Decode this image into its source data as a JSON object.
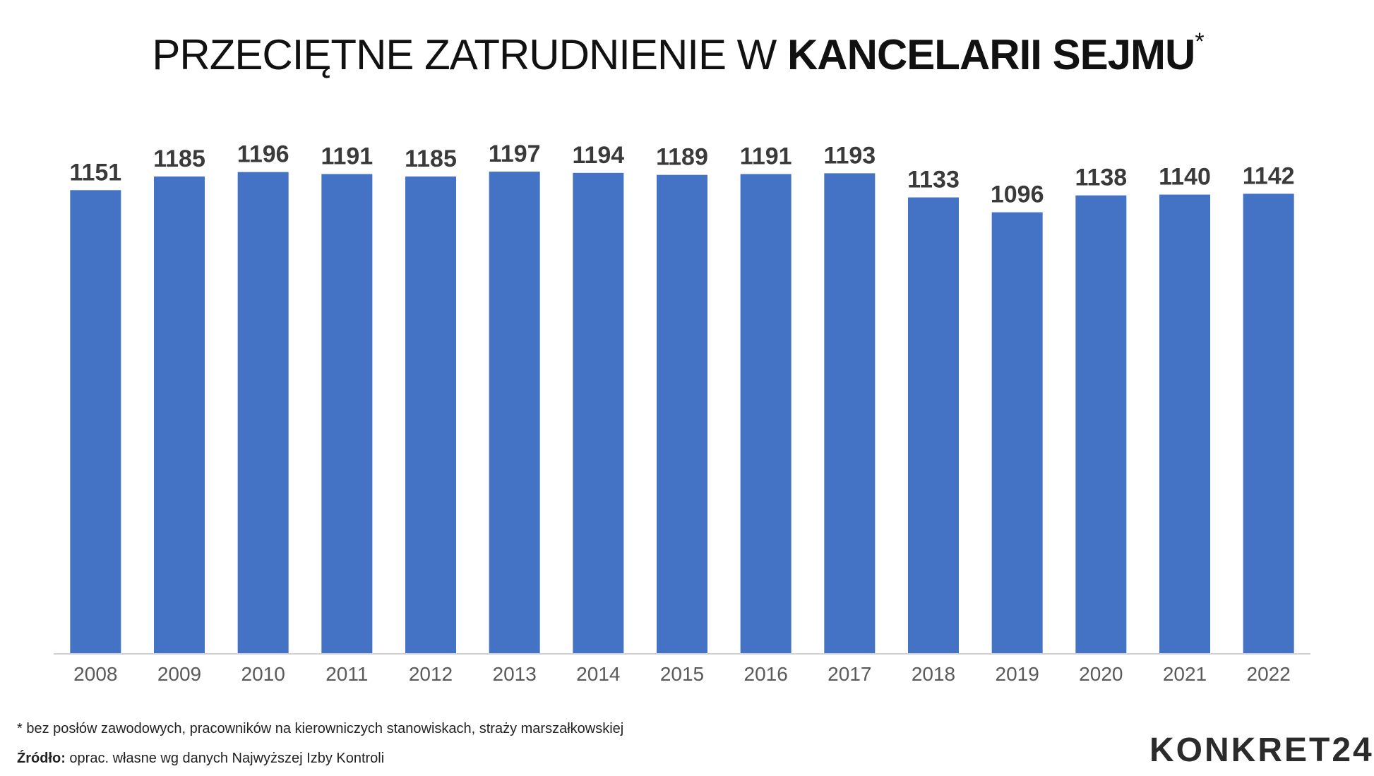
{
  "title": {
    "light": "PRZECIĘTNE ZATRUDNIENIE W ",
    "bold": "KANCELARII SEJMU",
    "mark": "*"
  },
  "chart_data": {
    "type": "bar",
    "categories": [
      "2008",
      "2009",
      "2010",
      "2011",
      "2012",
      "2013",
      "2014",
      "2015",
      "2016",
      "2017",
      "2018",
      "2019",
      "2020",
      "2021",
      "2022"
    ],
    "values": [
      1151,
      1185,
      1196,
      1191,
      1185,
      1197,
      1194,
      1189,
      1191,
      1193,
      1133,
      1096,
      1138,
      1140,
      1142
    ],
    "xlabel": "",
    "ylabel": "",
    "ylim": [
      0,
      1220
    ],
    "grid": false,
    "legend": "none",
    "bar_color": "#4472c4",
    "axis_color": "#d0d0d0",
    "label_color": "#3a3a3a",
    "tick_color": "#5a5a5a"
  },
  "footer": {
    "note": "* bez posłów zawodowych, pracowników na kierowniczych stanowiskach, straży marszałkowskiej",
    "source_label": "Źródło:",
    "source_text": " oprac. własne wg danych Najwyższej Izby Kontroli",
    "logo": "KONKRET24"
  }
}
